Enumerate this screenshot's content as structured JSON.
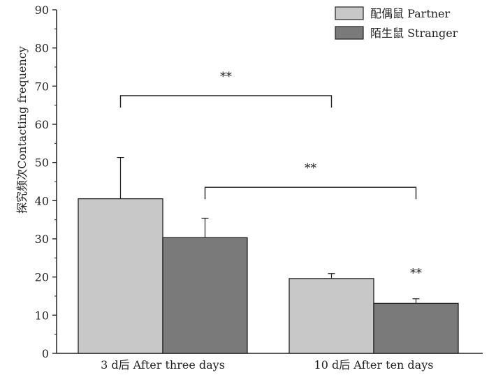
{
  "chart_data": {
    "type": "bar",
    "ylabel": "探究频次Contacting frequency",
    "xlabel": "",
    "ylim": [
      0,
      90
    ],
    "yticks": [
      "0",
      "10",
      "20",
      "30",
      "40",
      "50",
      "60",
      "70",
      "80",
      "90"
    ],
    "categories": [
      "3 d后 After three days",
      "10 d后 After ten days"
    ],
    "series": [
      {
        "name": "配偶鼠 Partner",
        "color": "#c8c8c8",
        "values": [
          40.5,
          19.6
        ],
        "errors": [
          10.8,
          1.3
        ]
      },
      {
        "name": "陌生鼠 Stranger",
        "color": "#7a7a7a",
        "values": [
          30.3,
          13.1
        ],
        "errors": [
          5.1,
          1.2
        ]
      }
    ],
    "legend_position": "top-right",
    "significance": [
      {
        "label": "**",
        "type": "bracket",
        "from": "3 d后 After three days / 配偶鼠 Partner",
        "to": "10 d后 After ten days / 配偶鼠 Partner",
        "y": 67.5
      },
      {
        "label": "**",
        "type": "bracket",
        "from": "3 d后 After three days / 陌生鼠 Stranger",
        "to": "10 d后 After ten days / 陌生鼠 Stranger",
        "y": 43.5
      },
      {
        "label": "**",
        "type": "text",
        "at": "10 d后 After ten days / 陌生鼠 Stranger",
        "y": 20.0
      }
    ]
  }
}
